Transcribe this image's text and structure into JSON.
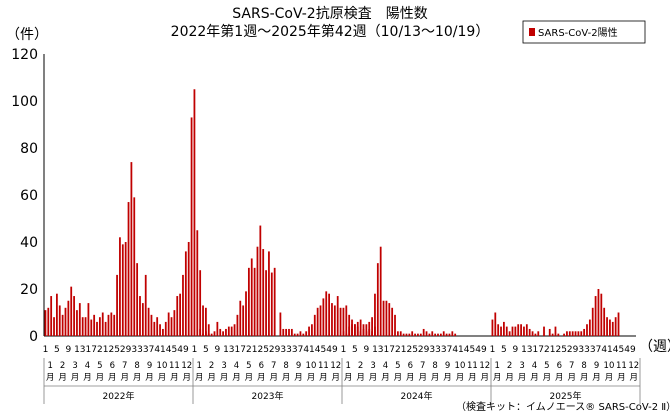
{
  "chart_data": {
    "type": "bar",
    "title": "SARS-CoV-2抗原検査　陽性数",
    "subtitle": "2022年第1週～2025年第42週（10/13～10/19）",
    "ylabel": "（件）",
    "xlabel": "（週）",
    "ylim": [
      0,
      120
    ],
    "yticks": [
      0,
      20,
      40,
      60,
      80,
      100,
      120
    ],
    "grid": false,
    "legend_position": "top-right",
    "bar_color": "#c00000",
    "week_tick_labels": [
      "1",
      "5",
      "9",
      "13",
      "17",
      "21",
      "25",
      "29",
      "33",
      "37",
      "41",
      "45",
      "49"
    ],
    "month_labels": [
      "1月",
      "2月",
      "3月",
      "4月",
      "5月",
      "6月",
      "7月",
      "8月",
      "9月",
      "10月",
      "11月",
      "12月"
    ],
    "year_labels": [
      "2022年",
      "2023年",
      "2024年",
      "2025年"
    ],
    "note": "（検査キット：イムノエース® SARS-CoV-2 Ⅱ）",
    "series": [
      {
        "name": "SARS-CoV-2陽性",
        "years": [
          {
            "year": "2022年",
            "values": [
              11,
              12,
              17,
              8,
              18,
              13,
              9,
              12,
              15,
              21,
              17,
              11,
              14,
              8,
              8,
              14,
              7,
              9,
              6,
              8,
              10,
              6,
              9,
              10,
              9,
              26,
              42,
              39,
              40,
              57,
              74,
              59,
              31,
              17,
              14,
              26,
              12,
              9,
              6,
              8,
              5,
              3,
              6,
              10,
              8,
              11,
              17,
              18,
              26,
              36,
              40,
              93,
              105,
              45,
              28,
              13,
              12,
              5
            ]
          },
          {
            "year": "2023年",
            "values": [
              0,
              0,
              3,
              1,
              2,
              1,
              1,
              2,
              6,
              3,
              2,
              3,
              4,
              4,
              5,
              9,
              15,
              13,
              19,
              29,
              33,
              29,
              38,
              47,
              37,
              28,
              36,
              27,
              29,
              0,
              10,
              3,
              3,
              3,
              3,
              1,
              1,
              2,
              1,
              2,
              4,
              5,
              9,
              12,
              13,
              16,
              19,
              18,
              14,
              13,
              17,
              12,
              12,
              13,
              9,
              7,
              5,
              6,
              7,
              3,
              2,
              3,
              2,
              4
            ]
          },
          {
            "year": "2024年",
            "values": [
              2,
              1,
              4,
              5,
              5,
              4,
              2,
              5,
              5,
              6,
              8,
              18,
              31,
              38,
              15,
              15,
              14,
              12,
              9,
              2,
              2,
              1,
              1,
              1,
              2,
              1,
              1,
              1,
              3,
              2,
              1,
              2,
              1,
              1,
              1,
              2,
              1,
              1,
              2,
              1
            ]
          },
          {
            "year": "2025年",
            "values": [
              7,
              10,
              5,
              4,
              6,
              4,
              2,
              4,
              4,
              5,
              5,
              4,
              5,
              3,
              2,
              1,
              2,
              0,
              4,
              0,
              3,
              1,
              4,
              1,
              0,
              1,
              2,
              2,
              2,
              2,
              2,
              2,
              3,
              5,
              7,
              12,
              17,
              20,
              18,
              12,
              8,
              7,
              6,
              8,
              10
            ]
          }
        ]
      }
    ]
  }
}
